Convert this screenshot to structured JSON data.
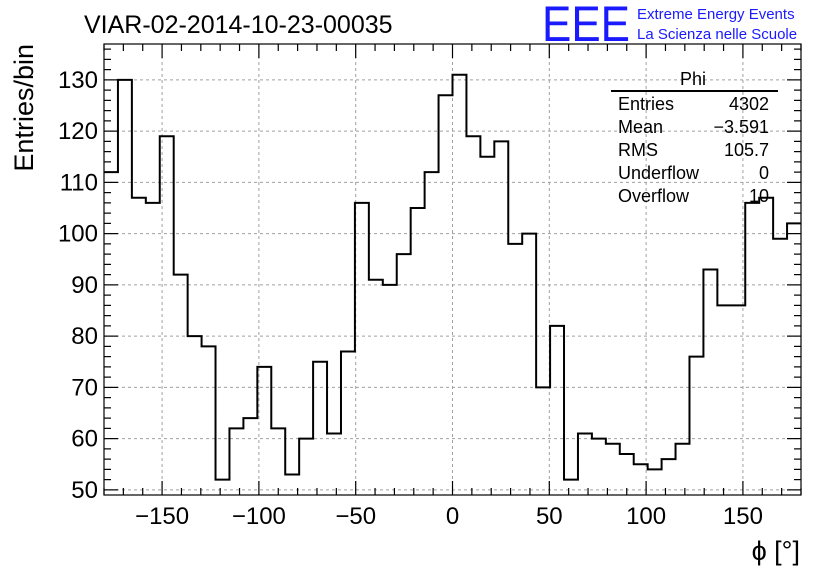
{
  "title": "VIAR-02-2014-10-23-00035",
  "logo": {
    "mark": "EEE",
    "line1": "Extreme Energy Events",
    "line2": "La Scienza nelle Scuole",
    "color": "#1a1aff"
  },
  "stats_box": {
    "title": "Phi",
    "rows": [
      {
        "label": "Entries",
        "value": "4302"
      },
      {
        "label": "Mean",
        "value": "−3.591"
      },
      {
        "label": "RMS",
        "value": "105.7"
      },
      {
        "label": "Underflow",
        "value": "0"
      },
      {
        "label": "Overflow",
        "value": "10"
      }
    ]
  },
  "chart_data": {
    "type": "histogram",
    "xlabel": "ϕ [°]",
    "ylabel": "Entries/bin",
    "xlim": [
      -180,
      180
    ],
    "ylim": [
      49,
      137
    ],
    "grid": true,
    "bin_width": 7.2,
    "x_ticks": [
      -150,
      -100,
      -50,
      0,
      50,
      100,
      150
    ],
    "x_tick_labels": [
      "−150",
      "−100",
      "−50",
      "0",
      "50",
      "100",
      "150"
    ],
    "y_ticks": [
      50,
      60,
      70,
      80,
      90,
      100,
      110,
      120,
      130
    ],
    "y_tick_labels": [
      "50",
      "60",
      "70",
      "80",
      "90",
      "100",
      "110",
      "120",
      "130"
    ],
    "values": [
      112,
      130,
      107,
      106,
      119,
      92,
      80,
      78,
      52,
      62,
      64,
      74,
      62,
      53,
      60,
      75,
      61,
      77,
      106,
      91,
      90,
      96,
      105,
      112,
      127,
      131,
      119,
      115,
      118,
      98,
      100,
      70,
      82,
      52,
      61,
      60,
      59,
      57,
      55,
      54,
      56,
      59,
      76,
      93,
      86,
      86,
      106,
      107,
      99,
      102
    ]
  }
}
